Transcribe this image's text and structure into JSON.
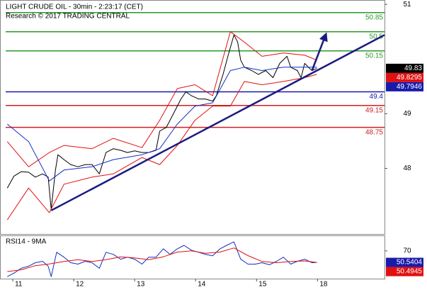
{
  "chart_data": [
    {
      "type": "line",
      "title": "LIGHT CRUDE OIL - 30min - 2:23:17 (CET)",
      "subtitle": "Research © 2017 TRADING CENTRAL",
      "xlim": [
        -0.21,
        6.1
      ],
      "ylim": [
        46.8,
        51.08
      ],
      "yticks": [
        48,
        49,
        51
      ],
      "series": [
        {
          "color": "#000000",
          "width": 1,
          "x": [
            -0.09,
            0.02,
            0.14,
            0.26,
            0.37,
            0.49,
            0.58,
            0.63,
            0.7,
            0.74,
            0.84,
            0.95,
            1.07,
            1.19,
            1.3,
            1.42,
            1.53,
            1.65,
            1.77,
            1.88,
            2.0,
            2.12,
            2.23,
            2.35,
            2.41,
            2.52,
            2.64,
            2.76,
            2.84,
            2.93,
            3.05,
            3.16,
            3.28,
            3.34,
            3.45,
            3.53,
            3.63,
            3.69,
            3.74,
            3.8,
            3.92,
            4.03,
            4.15,
            4.27,
            4.38,
            4.5,
            4.56,
            4.67,
            4.73,
            4.79,
            4.85,
            4.91,
            4.99
          ],
          "values": [
            47.64,
            47.86,
            47.94,
            47.93,
            47.84,
            47.9,
            47.84,
            47.25,
            47.97,
            48.25,
            48.16,
            48.07,
            48.03,
            48.07,
            48.07,
            47.9,
            48.29,
            48.36,
            48.33,
            48.29,
            48.32,
            48.29,
            48.29,
            48.33,
            48.68,
            48.75,
            49.01,
            49.27,
            49.4,
            49.33,
            49.27,
            49.27,
            49.23,
            49.33,
            49.72,
            50.05,
            50.44,
            50.31,
            49.98,
            49.85,
            49.79,
            49.72,
            49.79,
            49.66,
            49.92,
            50.05,
            49.85,
            49.79,
            49.66,
            49.92,
            49.85,
            49.79,
            49.83
          ]
        },
        {
          "color": "#e01010",
          "width": 1,
          "x": [
            -0.09,
            0.26,
            0.6,
            0.84,
            1.3,
            1.65,
            2.12,
            2.41,
            2.7,
            2.99,
            3.28,
            3.57,
            3.8,
            4.09,
            4.44,
            4.79,
            4.99
          ],
          "values": [
            48.49,
            48.03,
            48.29,
            48.42,
            48.36,
            48.55,
            48.38,
            48.88,
            49.46,
            49.53,
            49.33,
            50.5,
            50.31,
            50.05,
            50.11,
            50.07,
            49.98
          ]
        },
        {
          "color": "#e01010",
          "width": 1,
          "x": [
            -0.09,
            0.26,
            0.6,
            0.84,
            1.3,
            1.65,
            2.12,
            2.41,
            2.7,
            2.99,
            3.28,
            3.57,
            3.8,
            4.09,
            4.44,
            4.79,
            4.99
          ],
          "values": [
            47.06,
            47.64,
            47.19,
            47.71,
            47.84,
            47.9,
            48.2,
            48.07,
            48.42,
            48.88,
            49.14,
            49.14,
            49.59,
            49.53,
            49.59,
            49.66,
            49.72
          ]
        },
        {
          "color": "#1030c0",
          "width": 1,
          "x": [
            -0.09,
            0.26,
            0.6,
            0.84,
            1.3,
            1.65,
            2.12,
            2.41,
            2.7,
            2.99,
            3.28,
            3.57,
            3.8,
            4.09,
            4.44,
            4.79,
            4.99
          ],
          "values": [
            48.81,
            48.49,
            47.77,
            47.97,
            48.03,
            48.16,
            48.25,
            48.36,
            48.81,
            49.14,
            49.2,
            49.79,
            49.85,
            49.79,
            49.85,
            49.85,
            49.85
          ]
        },
        {
          "color": "#1a1a80",
          "width": 2.5,
          "x": [
            0.63,
            6.1
          ],
          "values": [
            47.23,
            50.44
          ]
        },
        {
          "color": "#1a1a80",
          "width": 2.5,
          "arrow": true,
          "x": [
            4.91,
            5.14
          ],
          "values": [
            49.79,
            50.46
          ]
        }
      ],
      "levels": [
        {
          "value": 50.85,
          "color": "#2a9a2a"
        },
        {
          "value": 50.5,
          "color": "#2a9a2a"
        },
        {
          "value": 50.15,
          "color": "#2a9a2a"
        },
        {
          "value": 49.4,
          "color": "#1a1aaa"
        },
        {
          "value": 49.15,
          "color": "#d02020"
        },
        {
          "value": 48.75,
          "color": "#d02020"
        }
      ],
      "price_labels": [
        {
          "value": 49.83,
          "color": "#000000"
        },
        {
          "value": 49.8295,
          "color": "#e01010"
        },
        {
          "value": 49.7946,
          "color": "#1a1aaa"
        }
      ]
    },
    {
      "type": "line",
      "title": "RSI14 - 9MA",
      "xlim": [
        -0.21,
        6.1
      ],
      "xticks": [
        {
          "value": 0,
          "label": "11"
        },
        {
          "value": 1,
          "label": "12"
        },
        {
          "value": 2,
          "label": "13"
        },
        {
          "value": 3,
          "label": "14"
        },
        {
          "value": 4,
          "label": "15"
        },
        {
          "value": 5,
          "label": "18"
        }
      ],
      "ylim": [
        23,
        95
      ],
      "yticks": [
        70
      ],
      "series": [
        {
          "color": "#1030c0",
          "width": 1,
          "x": [
            -0.09,
            0.02,
            0.14,
            0.26,
            0.37,
            0.49,
            0.58,
            0.63,
            0.72,
            0.84,
            0.95,
            1.07,
            1.19,
            1.3,
            1.42,
            1.53,
            1.65,
            1.77,
            1.88,
            2.0,
            2.12,
            2.23,
            2.35,
            2.47,
            2.58,
            2.7,
            2.81,
            2.93,
            3.05,
            3.16,
            3.28,
            3.4,
            3.51,
            3.63,
            3.74,
            3.86,
            3.98,
            4.09,
            4.21,
            4.33,
            4.44,
            4.56,
            4.67,
            4.79,
            4.91,
            4.99
          ],
          "values": [
            26.5,
            32.4,
            40.6,
            44.1,
            50.0,
            52.4,
            44.1,
            26.5,
            67.6,
            59.4,
            50.0,
            47.6,
            52.4,
            50.0,
            40.6,
            67.6,
            64.1,
            55.9,
            59.4,
            55.9,
            47.6,
            59.4,
            59.4,
            73.5,
            64.1,
            73.5,
            79.4,
            71.2,
            67.6,
            64.1,
            61.8,
            73.5,
            79.4,
            85.3,
            55.9,
            47.6,
            47.6,
            50.0,
            46.5,
            52.4,
            59.4,
            47.6,
            52.4,
            55.9,
            50.0,
            50.5
          ]
        },
        {
          "color": "#e01010",
          "width": 1,
          "x": [
            -0.09,
            0.14,
            0.37,
            0.6,
            0.84,
            1.07,
            1.3,
            1.53,
            1.77,
            2.0,
            2.23,
            2.47,
            2.7,
            2.93,
            3.16,
            3.4,
            3.63,
            3.86,
            4.09,
            4.33,
            4.56,
            4.79,
            4.99
          ],
          "values": [
            35,
            38,
            45,
            48,
            52,
            55,
            52,
            55,
            60,
            58,
            55,
            60,
            68,
            70,
            66,
            68,
            75,
            62,
            52,
            50,
            52,
            53,
            50.5
          ]
        }
      ],
      "price_labels": [
        {
          "value": 50.5404,
          "color": "#1a1aaa"
        },
        {
          "value": 50.4945,
          "color": "#e01010"
        }
      ]
    }
  ]
}
